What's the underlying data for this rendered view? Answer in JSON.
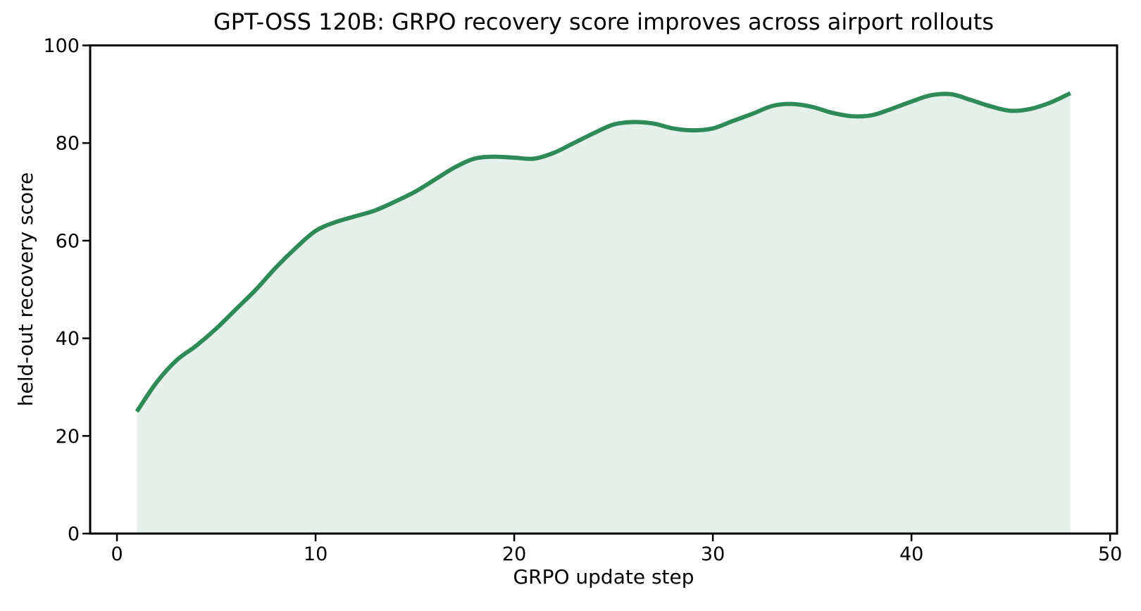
{
  "figure": {
    "title": "GPT-OSS 120B: GRPO recovery score improves across airport rollouts",
    "xlabel": "GRPO update step",
    "ylabel": "held-out recovery score"
  },
  "chart_data": {
    "type": "area",
    "title": "GPT-OSS 120B: GRPO recovery score improves across airport rollouts",
    "xlabel": "GRPO update step",
    "ylabel": "held-out recovery score",
    "legend": "none",
    "grid": false,
    "smoothing": "spline",
    "line_color": "#2e8b57",
    "fill_color": "rgba(46,139,87,0.13)",
    "axis_color": "#000000",
    "xlim": [
      -1.35,
      50.35
    ],
    "ylim": [
      0,
      100
    ],
    "xticks": [
      0,
      10,
      20,
      30,
      40,
      50
    ],
    "yticks": [
      0,
      20,
      40,
      60,
      80,
      100
    ],
    "series": [
      {
        "name": "held-out recovery score",
        "x": [
          1,
          2,
          3,
          4,
          5,
          6,
          7,
          8,
          9,
          10,
          11,
          12,
          13,
          14,
          15,
          16,
          17,
          18,
          19,
          20,
          21,
          22,
          23,
          24,
          25,
          26,
          27,
          28,
          29,
          30,
          31,
          32,
          33,
          34,
          35,
          36,
          37,
          38,
          39,
          40,
          41,
          42,
          43,
          44,
          45,
          46,
          47,
          48
        ],
        "y": [
          25,
          31,
          35.5,
          38.5,
          42,
          46,
          50,
          54.5,
          58.5,
          62,
          63.8,
          65,
          66.2,
          68,
          70,
          72.5,
          75,
          76.8,
          77.2,
          77,
          76.8,
          78,
          80,
          82,
          83.8,
          84.3,
          84,
          83,
          82.6,
          83,
          84.5,
          86,
          87.6,
          88,
          87.4,
          86.2,
          85.5,
          85.7,
          87,
          88.5,
          89.8,
          90,
          88.8,
          87.5,
          86.6,
          87,
          88.3,
          90.2
        ]
      }
    ]
  }
}
